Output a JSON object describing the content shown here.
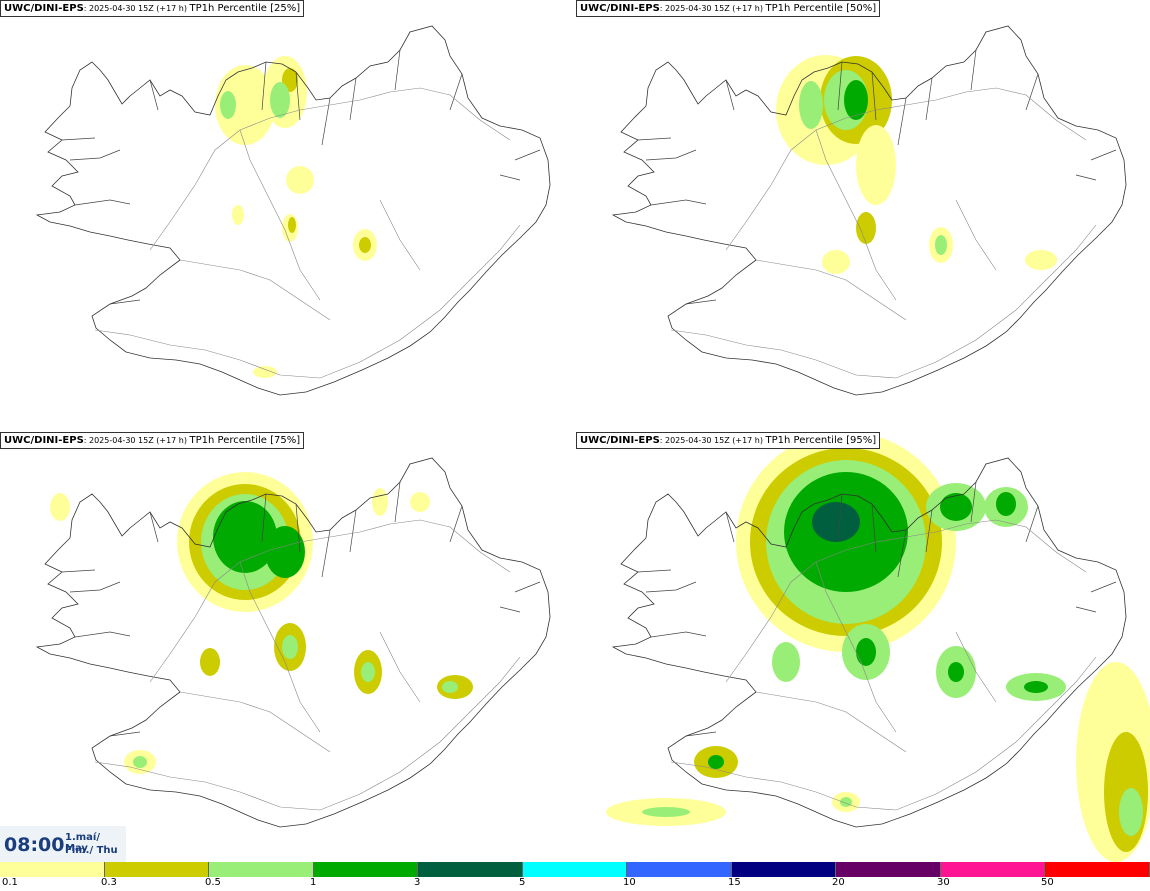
{
  "panels": [
    {
      "model": "UWC/DINI-EPS",
      "meta": ": 2025-04-30 15Z (+17 h) ",
      "product": "TP1h Percentile [25%]"
    },
    {
      "model": "UWC/DINI-EPS",
      "meta": ": 2025-04-30 15Z (+17 h) ",
      "product": "TP1h Percentile [50%]"
    },
    {
      "model": "UWC/DINI-EPS",
      "meta": ": 2025-04-30 15Z (+17 h) ",
      "product": "TP1h Percentile [75%]"
    },
    {
      "model": "UWC/DINI-EPS",
      "meta": ": 2025-04-30 15Z (+17 h) ",
      "product": "TP1h Percentile [95%]"
    }
  ],
  "time": {
    "clock": "08:00",
    "date_line1": "1.maí/ May",
    "date_line2": "Fim./ Thu"
  },
  "legend": {
    "colors": [
      "#ffff99",
      "#cccc00",
      "#99ee77",
      "#00aa00",
      "#005f3f",
      "#00ffff",
      "#3366ff",
      "#000080",
      "#660066",
      "#ff1493",
      "#ff0000"
    ],
    "labels": [
      "0.1",
      "0.3",
      "0.5",
      "1",
      "3",
      "5",
      "10",
      "15",
      "20",
      "30",
      "50"
    ]
  }
}
